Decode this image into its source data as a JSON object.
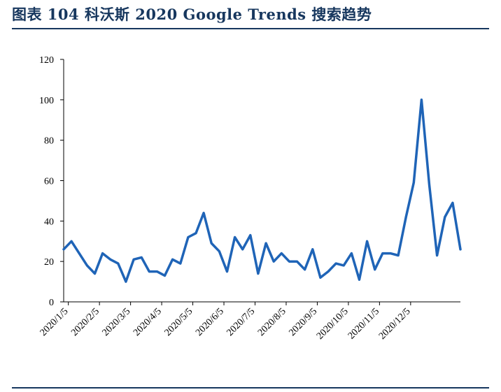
{
  "title": "图表 104    科沃斯 2020 Google Trends 搜索趋势",
  "colors": {
    "line": "#1f64b7",
    "title": "#17375e",
    "axis": "#000000"
  },
  "chart_data": {
    "type": "line",
    "title": "科沃斯 2020 Google Trends 搜索趋势",
    "xlabel": "",
    "ylabel": "",
    "ylim": [
      0,
      120
    ],
    "yticks": [
      0,
      20,
      40,
      60,
      80,
      100,
      120
    ],
    "xtick_labels": [
      "2020/1/5",
      "2020/2/5",
      "2020/3/5",
      "2020/4/5",
      "2020/5/5",
      "2020/6/5",
      "2020/7/5",
      "2020/8/5",
      "2020/9/5",
      "2020/10/5",
      "2020/11/5",
      "2020/12/5"
    ],
    "grid": false,
    "series": [
      {
        "name": "科沃斯",
        "values": [
          26,
          30,
          24,
          18,
          14,
          24,
          21,
          19,
          10,
          21,
          22,
          15,
          15,
          13,
          21,
          19,
          32,
          34,
          44,
          29,
          25,
          15,
          32,
          26,
          33,
          14,
          29,
          20,
          24,
          20,
          20,
          16,
          26,
          12,
          15,
          19,
          18,
          24,
          11,
          30,
          16,
          24,
          24,
          23,
          42,
          59,
          100,
          58,
          23,
          42,
          49,
          26
        ]
      }
    ]
  }
}
